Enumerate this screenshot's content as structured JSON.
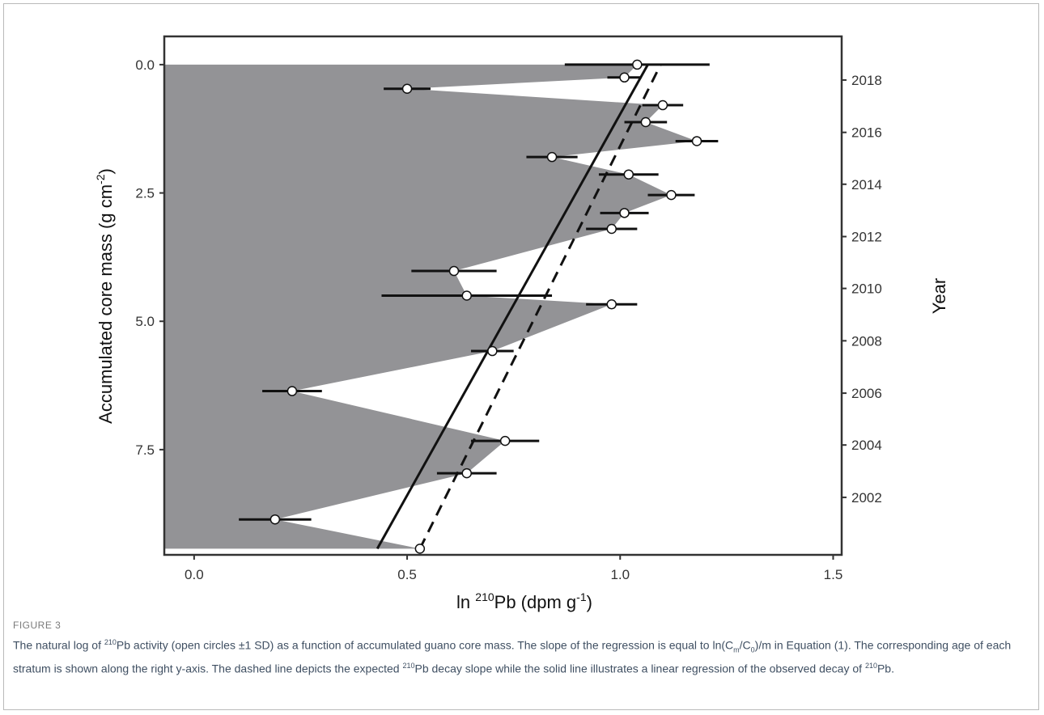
{
  "figure_label": "FIGURE 3",
  "caption": {
    "p1": "The natural log of ",
    "sup1": "210",
    "p2": "Pb activity (open circles ±1 SD) as a function of accumulated guano core mass. The slope of the regression is equal to ln(C",
    "sub1": "m",
    "p3": "/C",
    "sub2": "0",
    "p4": ")/m in Equation (1). The corresponding age of each stratum is shown along the right y-axis. The dashed line depicts the expected ",
    "sup2": "210",
    "p5": "Pb decay slope while the solid line illustrates a linear regression of the observed decay of ",
    "sup3": "210",
    "p6": "Pb."
  },
  "chart_data": {
    "type": "scatter",
    "xlabel_prefix": "ln ",
    "xlabel_sup": "210",
    "xlabel_suffix": "Pb (dpm g",
    "xlabel_sup2": "-1",
    "xlabel_close": ")",
    "ylabel_main": "Accumulated core mass (g cm",
    "ylabel_sup": "-2",
    "ylabel_close": ")",
    "y2label": "Year",
    "xlim": [
      -0.07,
      1.52
    ],
    "ylim": [
      -0.55,
      9.55
    ],
    "y_reversed": true,
    "x_ticks": [
      {
        "v": 0.0,
        "label": "0.0"
      },
      {
        "v": 0.5,
        "label": "0.5"
      },
      {
        "v": 1.0,
        "label": "1.0"
      },
      {
        "v": 1.5,
        "label": "1.5"
      }
    ],
    "y_ticks": [
      {
        "v": 0.0,
        "label": "0.0"
      },
      {
        "v": 2.5,
        "label": "2.5"
      },
      {
        "v": 5.0,
        "label": "5.0"
      },
      {
        "v": 7.5,
        "label": "7.5"
      }
    ],
    "y2_ticks": [
      {
        "mass": 0.3,
        "label": "2018"
      },
      {
        "mass": 1.32,
        "label": "2016"
      },
      {
        "mass": 2.33,
        "label": "2014"
      },
      {
        "mass": 3.35,
        "label": "2012"
      },
      {
        "mass": 4.36,
        "label": "2010"
      },
      {
        "mass": 5.38,
        "label": "2008"
      },
      {
        "mass": 6.4,
        "label": "2006"
      },
      {
        "mass": 7.41,
        "label": "2004"
      },
      {
        "mass": 8.43,
        "label": "2002"
      }
    ],
    "points": [
      {
        "x": 1.04,
        "y": 0.0,
        "sd": 0.17
      },
      {
        "x": 1.01,
        "y": 0.25,
        "sd": 0.04
      },
      {
        "x": 0.5,
        "y": 0.47,
        "sd": 0.055
      },
      {
        "x": 1.1,
        "y": 0.79,
        "sd": 0.048
      },
      {
        "x": 1.06,
        "y": 1.12,
        "sd": 0.05
      },
      {
        "x": 1.18,
        "y": 1.49,
        "sd": 0.05
      },
      {
        "x": 0.84,
        "y": 1.8,
        "sd": 0.06
      },
      {
        "x": 1.02,
        "y": 2.14,
        "sd": 0.07
      },
      {
        "x": 1.12,
        "y": 2.54,
        "sd": 0.055
      },
      {
        "x": 1.01,
        "y": 2.89,
        "sd": 0.057
      },
      {
        "x": 0.98,
        "y": 3.2,
        "sd": 0.06
      },
      {
        "x": 0.61,
        "y": 4.02,
        "sd": 0.1
      },
      {
        "x": 0.64,
        "y": 4.5,
        "sd": 0.2
      },
      {
        "x": 0.98,
        "y": 4.67,
        "sd": 0.06
      },
      {
        "x": 0.7,
        "y": 5.58,
        "sd": 0.05
      },
      {
        "x": 0.23,
        "y": 6.36,
        "sd": 0.07
      },
      {
        "x": 0.73,
        "y": 7.33,
        "sd": 0.08
      },
      {
        "x": 0.64,
        "y": 7.96,
        "sd": 0.07
      },
      {
        "x": 0.19,
        "y": 8.86,
        "sd": 0.085
      },
      {
        "x": 0.53,
        "y": 9.43,
        "sd": 0.0
      }
    ],
    "fill_color": "#939396",
    "solid_line": {
      "x": [
        0.43,
        1.065
      ],
      "y": [
        9.43,
        0.0
      ]
    },
    "dashed_line": {
      "x": [
        0.53,
        1.095
      ],
      "y": [
        9.43,
        0.0
      ]
    },
    "grid": false
  }
}
